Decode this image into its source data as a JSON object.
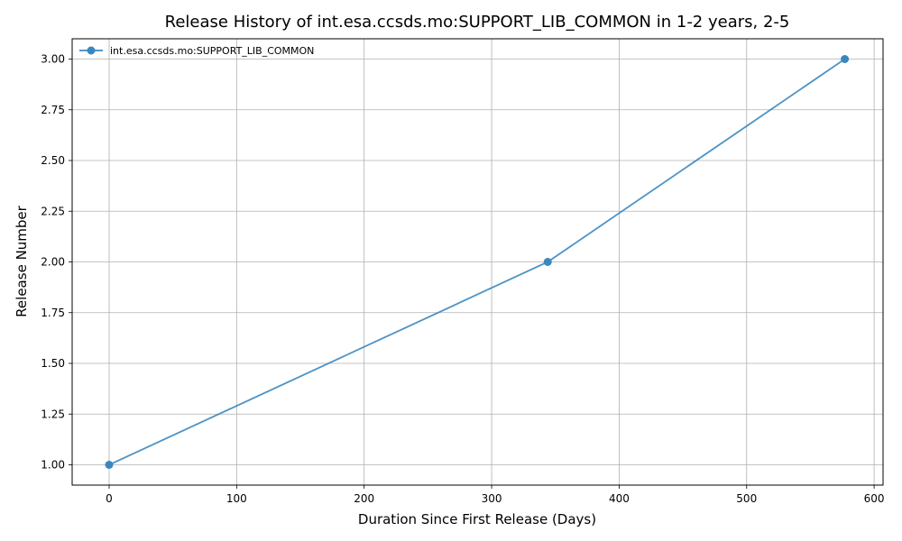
{
  "chart_data": {
    "type": "line",
    "title": "Release History of int.esa.ccsds.mo:SUPPORT_LIB_COMMON in 1-2 years, 2-5",
    "xlabel": "Duration Since First Release (Days)",
    "ylabel": "Release Number",
    "xlim": [
      -29,
      607
    ],
    "ylim": [
      0.9,
      3.1
    ],
    "x_ticks": [
      0,
      100,
      200,
      300,
      400,
      500,
      600
    ],
    "y_ticks": [
      1.0,
      1.25,
      1.5,
      1.75,
      2.0,
      2.25,
      2.5,
      2.75,
      3.0
    ],
    "x_tick_labels": [
      "0",
      "100",
      "200",
      "300",
      "400",
      "500",
      "600"
    ],
    "y_tick_labels": [
      "1.00",
      "1.25",
      "1.50",
      "1.75",
      "2.00",
      "2.25",
      "2.50",
      "2.75",
      "3.00"
    ],
    "grid": true,
    "legend_position": "top-left",
    "series": [
      {
        "name": "int.esa.ccsds.mo:SUPPORT_LIB_COMMON",
        "color": "#3a87be",
        "marker": "circle",
        "x": [
          0,
          344,
          577
        ],
        "y": [
          1,
          2,
          3
        ]
      }
    ]
  }
}
